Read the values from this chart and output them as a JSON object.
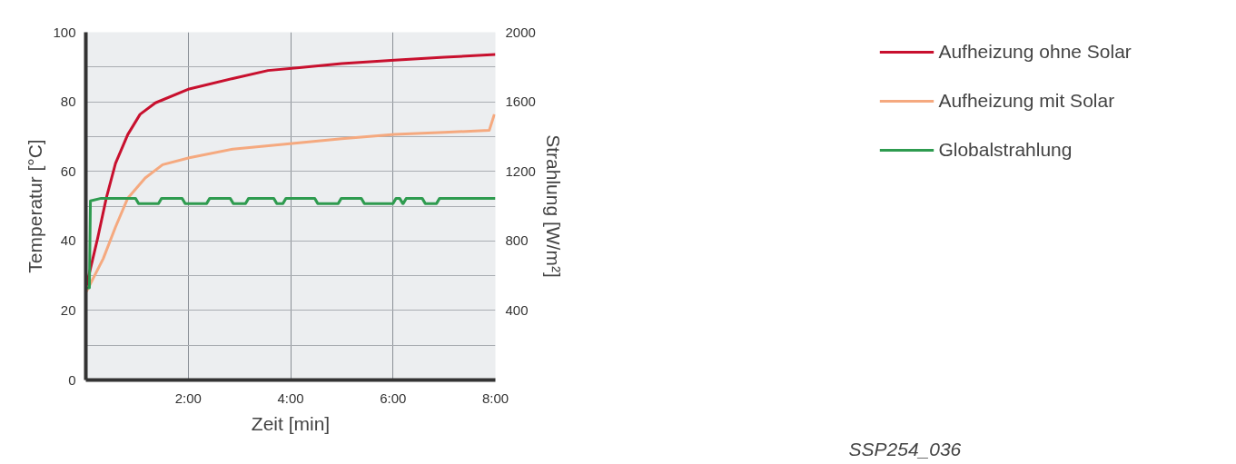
{
  "chart_data": {
    "type": "line",
    "xlabel": "Zeit [min]",
    "ylabel": "Temperatur [°C]",
    "y2label": "Strahlung [W/m²]",
    "xlim": [
      0,
      8
    ],
    "ylim": [
      0,
      100
    ],
    "y2lim": [
      0,
      2000
    ],
    "xticks": [
      {
        "value": 2,
        "label": "2:00"
      },
      {
        "value": 4,
        "label": "4:00"
      },
      {
        "value": 6,
        "label": "6:00"
      },
      {
        "value": 8,
        "label": "8:00"
      }
    ],
    "yticks": [
      0,
      {
        "value": 10,
        "label": null
      },
      20,
      {
        "value": 30,
        "label": null
      },
      40,
      {
        "value": 50,
        "label": null
      },
      60,
      {
        "value": 70,
        "label": null
      },
      80,
      {
        "value": 90,
        "label": null
      },
      100
    ],
    "y2ticks": [
      400,
      800,
      1200,
      1600,
      2000
    ],
    "grid": true,
    "legend": "top right",
    "line_style": "solid",
    "annotations": [
      "SSP254_036"
    ],
    "series": [
      {
        "name": "Aufheizung ohne Solar",
        "color": "#c8102e",
        "x": [
          0.01,
          0.23,
          0.4,
          0.58,
          0.82,
          1.06,
          1.36,
          2.02,
          2.87,
          3.56,
          4.17,
          5.0,
          6.03,
          7.0,
          8.0
        ],
        "values": [
          27,
          40.7,
          52.3,
          62.3,
          70.6,
          76.4,
          79.7,
          83.7,
          86.7,
          89.0,
          89.8,
          91.0,
          92.0,
          92.8,
          93.6
        ]
      },
      {
        "name": "Aufheizung mit Solar",
        "color": "#f5a97f",
        "x": [
          0.01,
          0.34,
          0.58,
          0.82,
          1.16,
          1.5,
          2.02,
          2.87,
          4.17,
          5.0,
          6.03,
          7.0,
          7.88,
          7.98
        ],
        "values": [
          25.4,
          34.9,
          44,
          52.3,
          58.1,
          61.9,
          63.9,
          66.4,
          68.2,
          69.4,
          70.6,
          71.2,
          71.8,
          76.4
        ]
      },
      {
        "name": "Globalstrahlung",
        "color": "#2e9b4f",
        "axis": "y2",
        "x": [
          0,
          0.07,
          0.09,
          0.3,
          0.97,
          1.03,
          1.42,
          1.48,
          1.88,
          1.94,
          2.36,
          2.42,
          2.82,
          2.88,
          3.12,
          3.18,
          3.67,
          3.73,
          3.85,
          3.91,
          4.47,
          4.53,
          4.93,
          4.99,
          5.38,
          5.44,
          6.0,
          6.06,
          6.13,
          6.19,
          6.2,
          6.26,
          6.57,
          6.63,
          6.85,
          6.91,
          8.0
        ],
        "values": [
          530,
          530,
          1030,
          1045,
          1045,
          1015,
          1015,
          1045,
          1045,
          1015,
          1015,
          1045,
          1045,
          1015,
          1015,
          1045,
          1045,
          1015,
          1015,
          1045,
          1045,
          1015,
          1015,
          1045,
          1045,
          1015,
          1015,
          1045,
          1045,
          1015,
          1015,
          1045,
          1045,
          1015,
          1015,
          1045,
          1045
        ]
      }
    ]
  }
}
